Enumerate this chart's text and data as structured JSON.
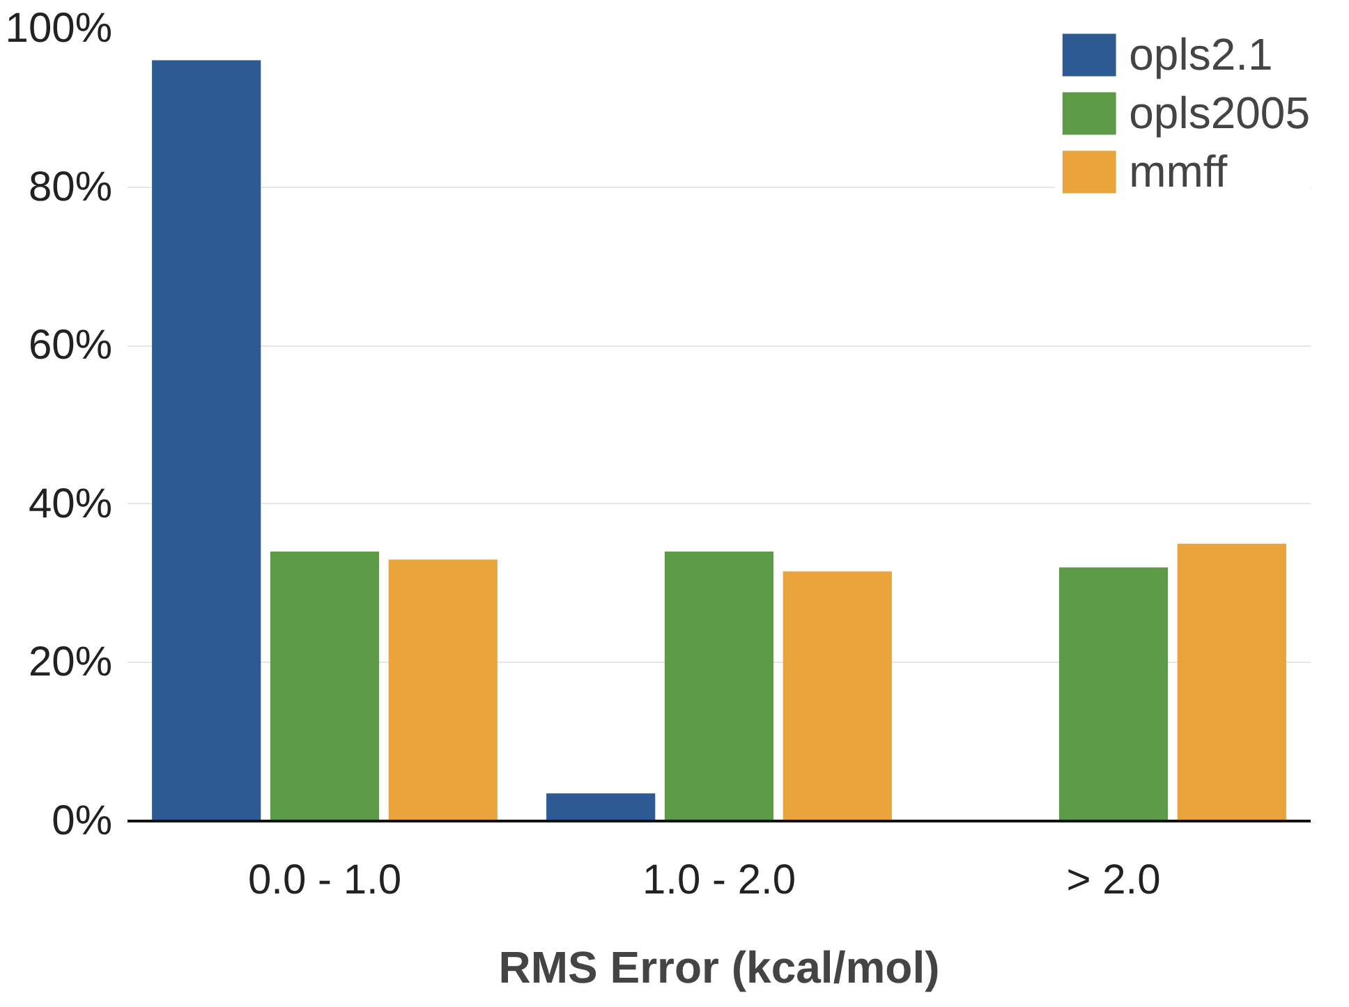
{
  "chart_data": {
    "type": "bar",
    "xlabel": "RMS Error (kcal/mol)",
    "categories": [
      "0.0 - 1.0",
      "1.0 - 2.0",
      "> 2.0"
    ],
    "series": [
      {
        "name": "opls2.1",
        "color": "#2d5a93",
        "values": [
          96,
          3.5,
          null
        ]
      },
      {
        "name": "opls2005",
        "color": "#5c9a46",
        "values": [
          34,
          34,
          32
        ]
      },
      {
        "name": "mmff",
        "color": "#e9a43c",
        "values": [
          33,
          31.5,
          35
        ]
      }
    ],
    "ylim": [
      0,
      100
    ],
    "yticks": [
      {
        "value": 0,
        "label": "0%"
      },
      {
        "value": 20,
        "label": "20%"
      },
      {
        "value": 40,
        "label": "40%"
      },
      {
        "value": 60,
        "label": "60%"
      },
      {
        "value": 80,
        "label": "80%"
      },
      {
        "value": 100,
        "label": "100%"
      }
    ],
    "grid": "y",
    "legend": "top right"
  }
}
